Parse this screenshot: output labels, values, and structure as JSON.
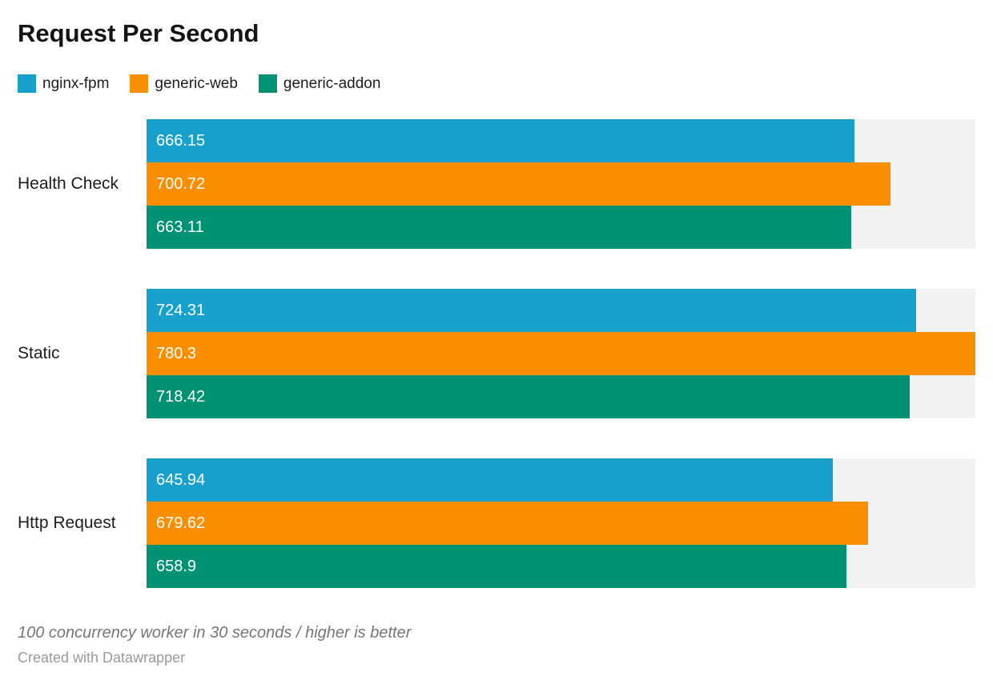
{
  "title": "Request Per Second",
  "chart_data": {
    "type": "bar",
    "orientation": "horizontal",
    "title": "Request Per Second",
    "xlabel": "",
    "ylabel": "",
    "xlim": [
      0,
      780.3
    ],
    "grid": false,
    "legend_position": "top",
    "track_color": "#f2f2f2",
    "categories": [
      "Health Check",
      "Static",
      "Http Request"
    ],
    "series": [
      {
        "name": "nginx-fpm",
        "color": "#18a1cd",
        "values": [
          666.15,
          724.31,
          645.94
        ]
      },
      {
        "name": "generic-web",
        "color": "#f98f00",
        "values": [
          700.72,
          780.3,
          679.62
        ]
      },
      {
        "name": "generic-addon",
        "color": "#009273",
        "values": [
          663.11,
          718.42,
          658.9
        ]
      }
    ],
    "rows": [
      {
        "category": "Health Check",
        "bars": [
          {
            "series": "nginx-fpm",
            "value": 666.15,
            "label": "666.15"
          },
          {
            "series": "generic-web",
            "value": 700.72,
            "label": "700.72"
          },
          {
            "series": "generic-addon",
            "value": 663.11,
            "label": "663.11"
          }
        ]
      },
      {
        "category": "Static",
        "bars": [
          {
            "series": "nginx-fpm",
            "value": 724.31,
            "label": "724.31"
          },
          {
            "series": "generic-web",
            "value": 780.3,
            "label": "780.3"
          },
          {
            "series": "generic-addon",
            "value": 718.42,
            "label": "718.42"
          }
        ]
      },
      {
        "category": "Http Request",
        "bars": [
          {
            "series": "nginx-fpm",
            "value": 645.94,
            "label": "645.94"
          },
          {
            "series": "generic-web",
            "value": 679.62,
            "label": "679.62"
          },
          {
            "series": "generic-addon",
            "value": 658.9,
            "label": "658.9"
          }
        ]
      }
    ]
  },
  "footer": {
    "note": "100 concurrency worker in 30 seconds / higher is better",
    "attribution": "Created with Datawrapper"
  }
}
